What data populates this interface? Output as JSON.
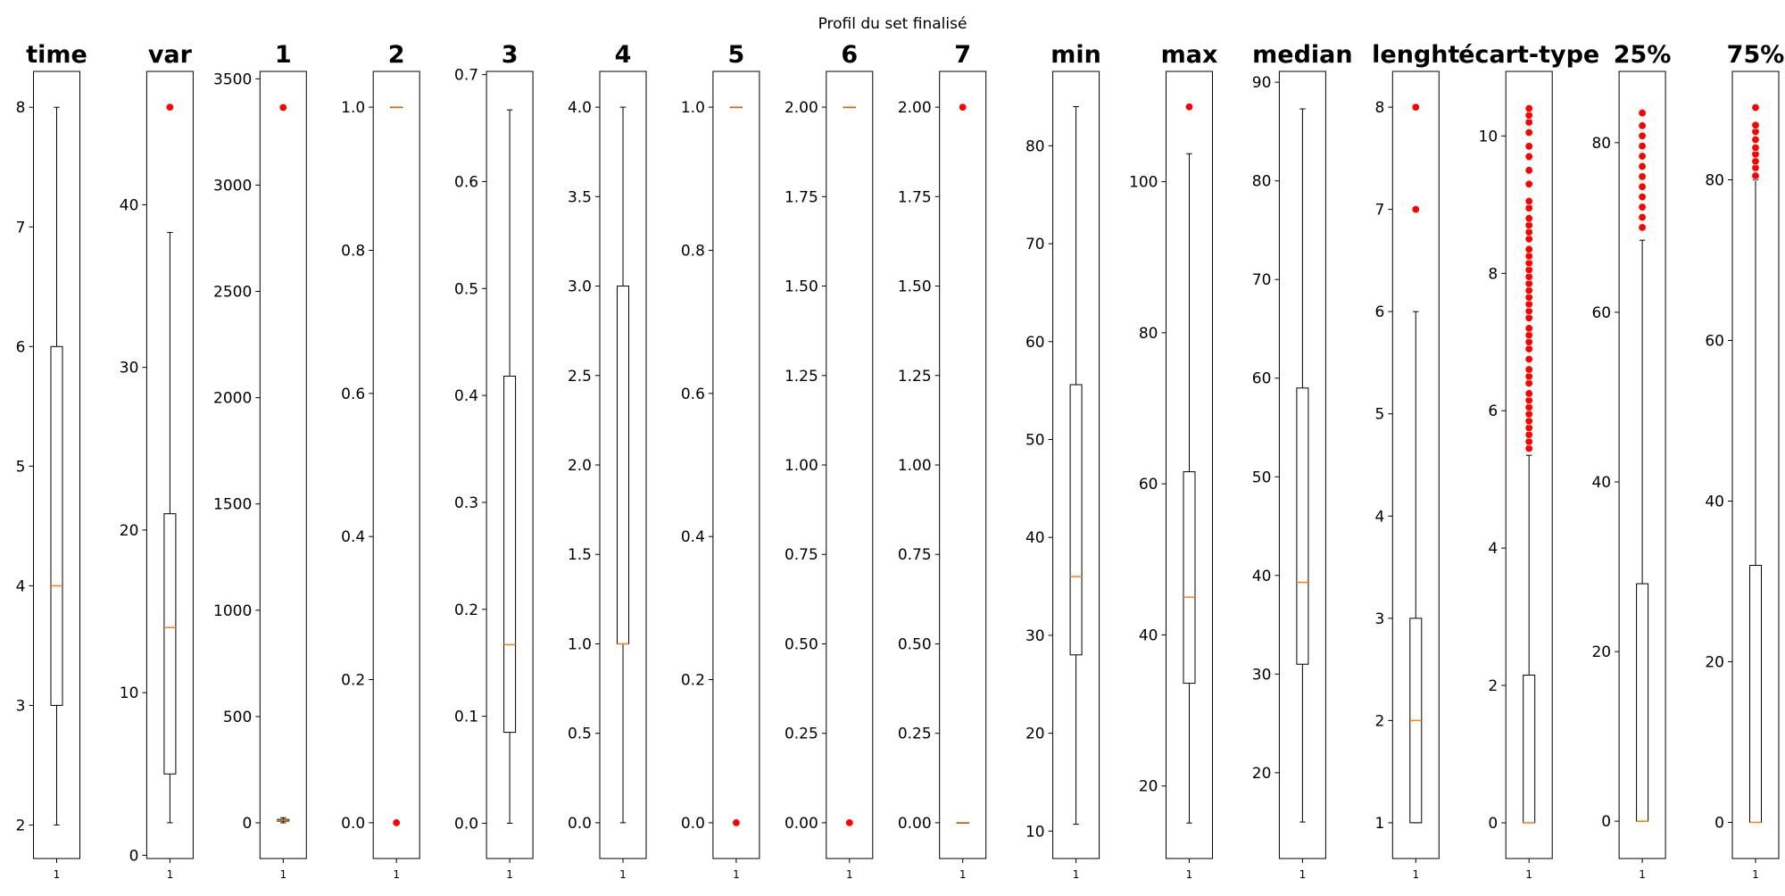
{
  "figure": {
    "title": "Profil du set finalisé"
  },
  "chart_data": [
    {
      "type": "box",
      "title": "time",
      "xtick": "1",
      "ylim": [
        1.72,
        8.3
      ],
      "yticks": [
        2,
        3,
        4,
        5,
        6,
        7,
        8
      ],
      "box": {
        "whislo": 2,
        "q1": 3,
        "med": 4,
        "q3": 6,
        "whishi": 8
      },
      "outliers": []
    },
    {
      "type": "box",
      "title": "var",
      "xtick": "1",
      "ylim": [
        -0.2,
        48.2
      ],
      "yticks": [
        0,
        10,
        20,
        30,
        40
      ],
      "box": {
        "whislo": 2,
        "q1": 5,
        "med": 14,
        "q3": 21,
        "whishi": 38.3
      },
      "outliers": [
        46
      ]
    },
    {
      "type": "box",
      "title": "1",
      "xtick": "1",
      "ylim": [
        -168,
        3535
      ],
      "yticks": [
        0,
        500,
        1000,
        1500,
        2000,
        2500,
        3000,
        3500
      ],
      "box": {
        "whislo": 0,
        "q1": 8,
        "med": 12,
        "q3": 16,
        "whishi": 24
      },
      "outliers": [
        3365
      ]
    },
    {
      "type": "box",
      "title": "2",
      "xtick": "1",
      "ylim": [
        -0.05,
        1.05
      ],
      "yticks": [
        0.0,
        0.2,
        0.4,
        0.6,
        0.8,
        1.0
      ],
      "box": {
        "whislo": 1,
        "q1": 1,
        "med": 1,
        "q3": 1,
        "whishi": 1
      },
      "outliers": [
        0
      ]
    },
    {
      "type": "box",
      "title": "3",
      "xtick": "1",
      "ylim": [
        -0.033,
        0.703
      ],
      "yticks": [
        0.0,
        0.1,
        0.2,
        0.3,
        0.4,
        0.5,
        0.6,
        0.7
      ],
      "box": {
        "whislo": 0,
        "q1": 0.085,
        "med": 0.167,
        "q3": 0.418,
        "whishi": 0.667
      },
      "outliers": []
    },
    {
      "type": "box",
      "title": "4",
      "xtick": "1",
      "ylim": [
        -0.2,
        4.2
      ],
      "yticks": [
        0.0,
        0.5,
        1.0,
        1.5,
        2.0,
        2.5,
        3.0,
        3.5,
        4.0
      ],
      "box": {
        "whislo": 0,
        "q1": 1,
        "med": 1,
        "q3": 3,
        "whishi": 4
      },
      "outliers": []
    },
    {
      "type": "box",
      "title": "5",
      "xtick": "1",
      "ylim": [
        -0.05,
        1.05
      ],
      "yticks": [
        0.0,
        0.2,
        0.4,
        0.6,
        0.8,
        1.0
      ],
      "box": {
        "whislo": 1,
        "q1": 1,
        "med": 1,
        "q3": 1,
        "whishi": 1
      },
      "outliers": [
        0
      ]
    },
    {
      "type": "box",
      "title": "6",
      "xtick": "1",
      "ylim": [
        -0.1,
        2.1
      ],
      "yticks": [
        0.0,
        0.25,
        0.5,
        0.75,
        1.0,
        1.25,
        1.5,
        1.75,
        2.0
      ],
      "box": {
        "whislo": 2,
        "q1": 2,
        "med": 2,
        "q3": 2,
        "whishi": 2
      },
      "outliers": [
        0
      ]
    },
    {
      "type": "box",
      "title": "7",
      "xtick": "1",
      "ylim": [
        -0.1,
        2.1
      ],
      "yticks": [
        0.0,
        0.25,
        0.5,
        0.75,
        1.0,
        1.25,
        1.5,
        1.75,
        2.0
      ],
      "box": {
        "whislo": 0,
        "q1": 0,
        "med": 0,
        "q3": 0,
        "whishi": 0
      },
      "outliers": [
        2
      ]
    },
    {
      "type": "box",
      "title": "min",
      "xtick": "1",
      "ylim": [
        7.2,
        87.6
      ],
      "yticks": [
        10,
        20,
        30,
        40,
        50,
        60,
        70,
        80
      ],
      "box": {
        "whislo": 10.7,
        "q1": 28,
        "med": 36,
        "q3": 55.6,
        "whishi": 84
      },
      "outliers": []
    },
    {
      "type": "box",
      "title": "max",
      "xtick": "1",
      "ylim": [
        10.4,
        114.6
      ],
      "yticks": [
        20,
        40,
        60,
        80,
        100
      ],
      "box": {
        "whislo": 15.1,
        "q1": 33.6,
        "med": 45,
        "q3": 61.6,
        "whishi": 103.7
      },
      "outliers": [
        109.9
      ]
    },
    {
      "type": "box",
      "title": "median",
      "xtick": "1",
      "ylim": [
        11.3,
        91.1
      ],
      "yticks": [
        20,
        30,
        40,
        50,
        60,
        70,
        80,
        90
      ],
      "box": {
        "whislo": 15,
        "q1": 31,
        "med": 39.3,
        "q3": 59,
        "whishi": 87.3
      },
      "outliers": []
    },
    {
      "type": "box",
      "title": "lenght",
      "xtick": "1",
      "ylim": [
        0.65,
        8.35
      ],
      "yticks": [
        1,
        2,
        3,
        4,
        5,
        6,
        7,
        8
      ],
      "box": {
        "whislo": 1,
        "q1": 1,
        "med": 2,
        "q3": 3,
        "whishi": 6
      },
      "outliers": [
        7,
        8
      ]
    },
    {
      "type": "box",
      "title": "écart-type",
      "xtick": "1",
      "ylim": [
        -0.52,
        10.94
      ],
      "yticks": [
        0,
        2,
        4,
        6,
        8,
        10
      ],
      "box": {
        "whislo": 0,
        "q1": 0,
        "med": 0,
        "q3": 2.15,
        "whishi": 5.35
      },
      "outliers": [
        5.45,
        5.55,
        5.65,
        5.75,
        5.85,
        5.95,
        6.05,
        6.15,
        6.25,
        6.4,
        6.5,
        6.6,
        6.75,
        6.9,
        7.0,
        7.1,
        7.2,
        7.35,
        7.45,
        7.55,
        7.65,
        7.75,
        7.85,
        7.95,
        8.05,
        8.15,
        8.25,
        8.35,
        8.5,
        8.6,
        8.7,
        8.8,
        8.95,
        9.05,
        9.3,
        9.5,
        9.7,
        9.85,
        10.05,
        10.2,
        10.3,
        10.4
      ]
    },
    {
      "type": "box",
      "title": "25%",
      "xtick": "1",
      "ylim": [
        -4.4,
        88.4
      ],
      "yticks": [
        0,
        20,
        40,
        60,
        80
      ],
      "box": {
        "whislo": 0,
        "q1": 0,
        "med": 0,
        "q3": 28,
        "whishi": 68.5
      },
      "outliers": [
        70,
        71.2,
        72.4,
        73.6,
        74.8,
        76,
        77.2,
        78.4,
        79.6,
        80.8,
        82,
        83.5
      ]
    },
    {
      "type": "box",
      "title": "75%",
      "xtick": "1",
      "ylim": [
        -4.5,
        93.5
      ],
      "yticks": [
        0,
        20,
        40,
        60,
        80
      ],
      "box": {
        "whislo": 0,
        "q1": 0,
        "med": 0,
        "q3": 32,
        "whishi": 80
      },
      "outliers": [
        80.5,
        81.5,
        82.3,
        83.2,
        84,
        85,
        86,
        86.8,
        89
      ]
    }
  ]
}
